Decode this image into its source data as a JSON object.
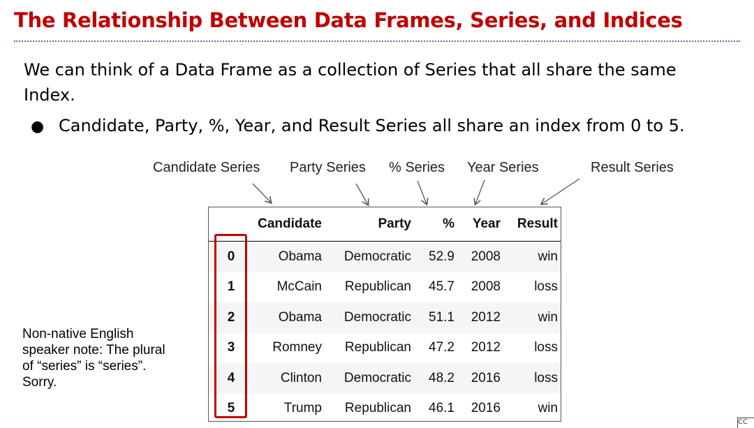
{
  "slide": {
    "title": "The Relationship Between Data Frames, Series, and Indices",
    "paragraph": "We can think of a Data Frame as a collection of Series that all share the same Index.",
    "bullet": "Candidate, Party, %, Year, and Result Series all share an index from  0 to 5.",
    "note": "Non-native English speaker note: The plural of “series” is “series”. Sorry.",
    "cc_icon_text": "CC"
  },
  "series_labels": {
    "candidate": "Candidate Series",
    "party": "Party Series",
    "pct": "% Series",
    "year": "Year Series",
    "result": "Result Series"
  },
  "table": {
    "headers": [
      "",
      "Candidate",
      "Party",
      "%",
      "Year",
      "Result"
    ],
    "rows": [
      [
        "0",
        "Obama",
        "Democratic",
        "52.9",
        "2008",
        "win"
      ],
      [
        "1",
        "McCain",
        "Republican",
        "45.7",
        "2008",
        "loss"
      ],
      [
        "2",
        "Obama",
        "Democratic",
        "51.1",
        "2012",
        "win"
      ],
      [
        "3",
        "Romney",
        "Republican",
        "47.2",
        "2012",
        "loss"
      ],
      [
        "4",
        "Clinton",
        "Democratic",
        "48.2",
        "2016",
        "loss"
      ],
      [
        "5",
        "Trump",
        "Republican",
        "46.1",
        "2016",
        "win"
      ]
    ]
  },
  "colors": {
    "title": "#c00000",
    "index_highlight": "#c00000",
    "divider": "#4a6fa5"
  }
}
